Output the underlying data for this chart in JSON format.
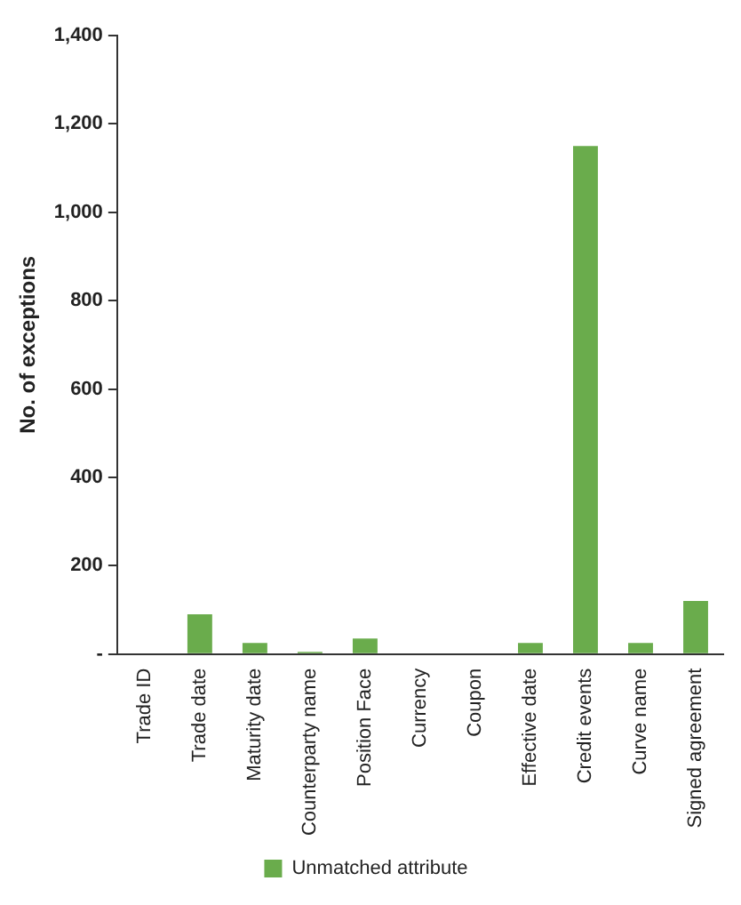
{
  "chart_data": {
    "type": "bar",
    "ylabel": "No. of exceptions",
    "categories": [
      "Trade ID",
      "Trade date",
      "Maturity date",
      "Counterparty name",
      "Position Face",
      "Currency",
      "Coupon",
      "Effective date",
      "Credit events",
      "Curve name",
      "Signed agreement"
    ],
    "series": [
      {
        "name": "Unmatched attribute",
        "color": "#6aac4c",
        "values": [
          0,
          90,
          25,
          5,
          35,
          0,
          0,
          25,
          1150,
          25,
          120
        ]
      }
    ],
    "ylim": [
      0,
      1400
    ],
    "yticks": [
      {
        "value": 0,
        "label": "-"
      },
      {
        "value": 200,
        "label": "200"
      },
      {
        "value": 400,
        "label": "400"
      },
      {
        "value": 600,
        "label": "600"
      },
      {
        "value": 800,
        "label": "800"
      },
      {
        "value": 1000,
        "label": "1,000"
      },
      {
        "value": 1200,
        "label": "1,200"
      },
      {
        "value": 1400,
        "label": "1,400"
      }
    ],
    "grid": false,
    "legend": "bottom"
  }
}
